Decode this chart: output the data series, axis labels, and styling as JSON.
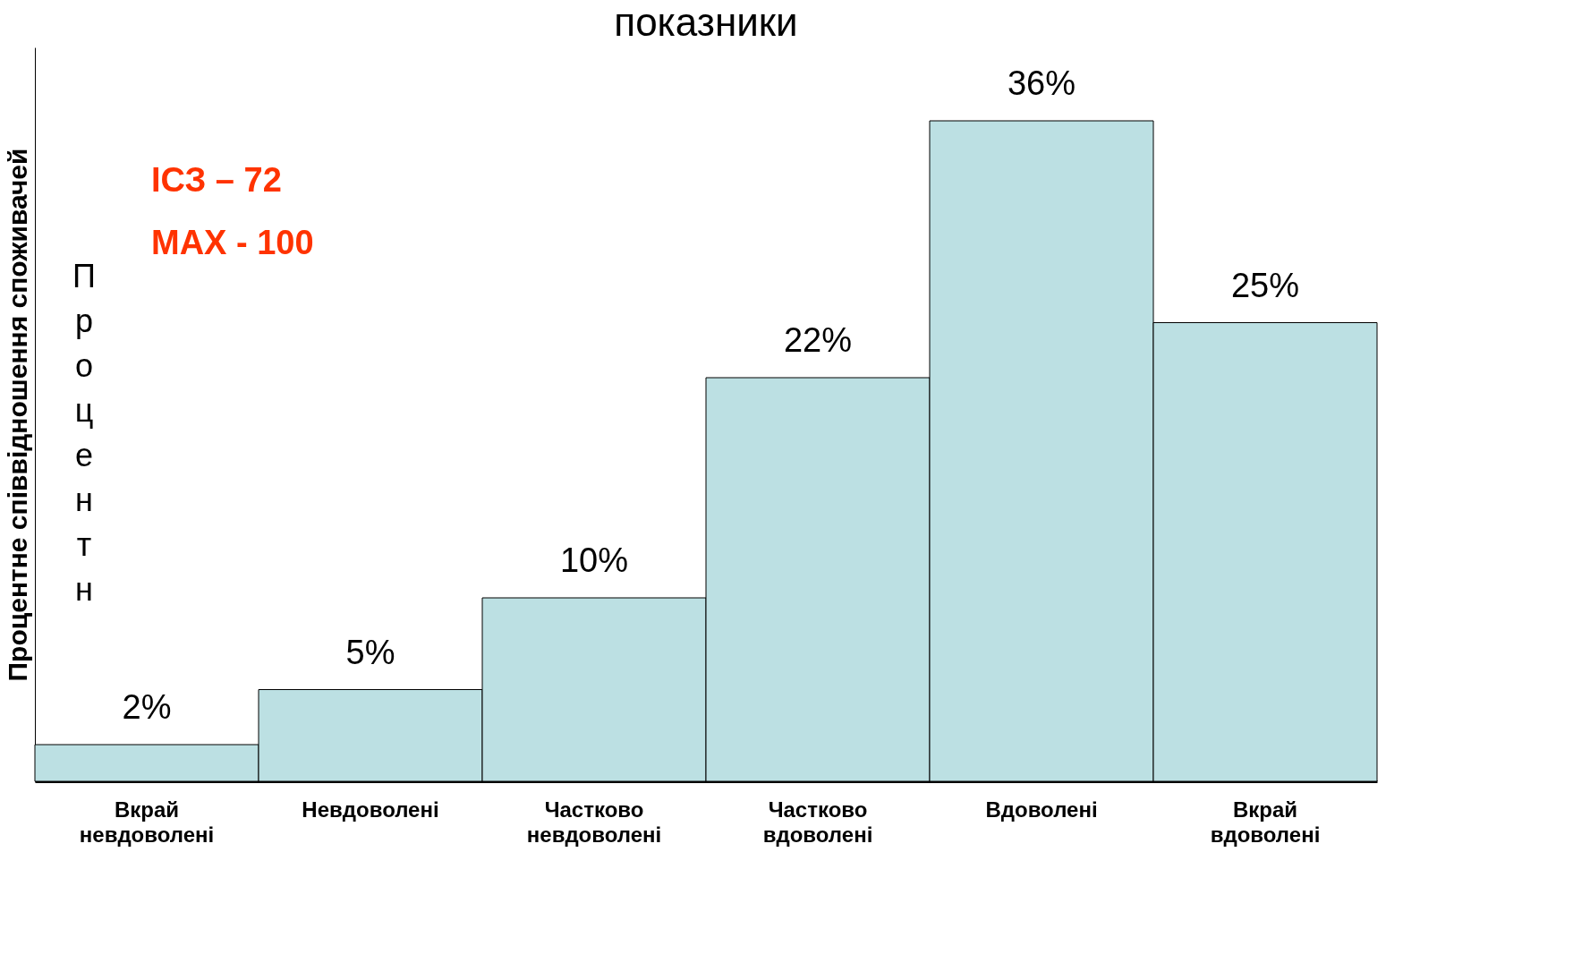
{
  "chart_data": {
    "type": "bar",
    "title": "показники",
    "ylabel": "Процентне співвідношення споживачей",
    "categories": [
      "Вкрай невдоволені",
      "Невдоволені",
      "Частково невдоволені",
      "Частково вдоволені",
      "Вдоволені",
      "Вкрай вдоволені"
    ],
    "values": [
      2,
      5,
      10,
      22,
      36,
      25
    ],
    "value_labels": [
      "2%",
      "5%",
      "10%",
      "22%",
      "36%",
      "25%"
    ],
    "color": "#bce0e3",
    "annotations": [
      "ІСЗ – 72",
      "MAX - 100",
      "Процентн"
    ],
    "tick_labels": "x",
    "grid": false
  }
}
